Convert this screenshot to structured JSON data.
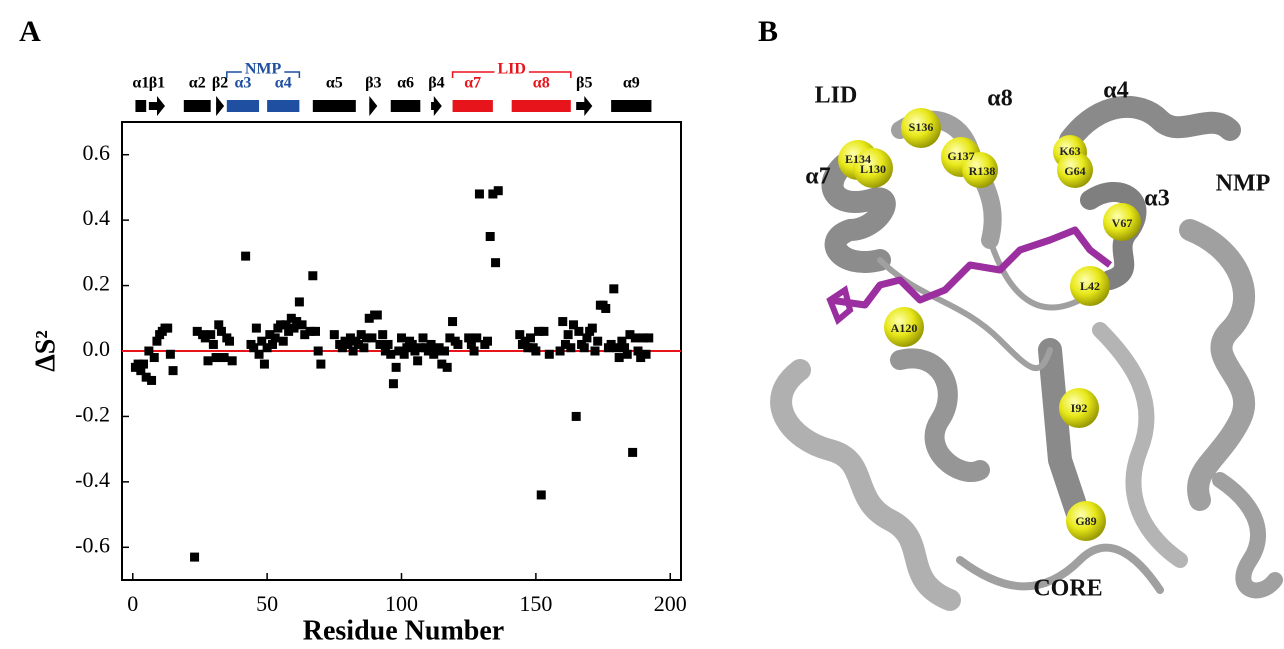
{
  "panel_labels": [
    "A",
    "B"
  ],
  "chart_data": {
    "type": "scatter",
    "xlabel": "Residue Number",
    "ylabel": "ΔS²",
    "xlim": [
      -4,
      204
    ],
    "ylim": [
      -0.7,
      0.7
    ],
    "xticks": [
      0,
      50,
      100,
      150,
      200
    ],
    "yticks": [
      -0.6,
      -0.4,
      -0.2,
      {
        "value": 0,
        "label": "0.0"
      },
      0.2,
      0.4,
      0.6
    ],
    "color": "#000000",
    "hline": 0,
    "hline_color": "#e8141b",
    "x": [
      1,
      2,
      3,
      4,
      5,
      6,
      7,
      8,
      9,
      10,
      11,
      12,
      13,
      14,
      15,
      23,
      24,
      26,
      27,
      28,
      29,
      30,
      31,
      32,
      33,
      34,
      35,
      36,
      37,
      42,
      44,
      45,
      46,
      47,
      48,
      49,
      50,
      51,
      52,
      53,
      54,
      55,
      56,
      57,
      58,
      59,
      60,
      61,
      62,
      63,
      64,
      66,
      67,
      68,
      69,
      70,
      75,
      77,
      78,
      79,
      80,
      81,
      82,
      83,
      84,
      85,
      86,
      87,
      88,
      89,
      90,
      91,
      92,
      93,
      94,
      95,
      96,
      97,
      98,
      99,
      100,
      101,
      102,
      103,
      104,
      105,
      106,
      107,
      108,
      109,
      110,
      111,
      112,
      113,
      114,
      115,
      116,
      117,
      118,
      119,
      120,
      121,
      125,
      126,
      127,
      128,
      129,
      131,
      132,
      133,
      134,
      135,
      136,
      144,
      145,
      146,
      147,
      148,
      149,
      150,
      151,
      152,
      153,
      155,
      159,
      160,
      161,
      162,
      163,
      164,
      165,
      166,
      167,
      168,
      169,
      170,
      171,
      172,
      173,
      174,
      175,
      176,
      177,
      178,
      179,
      180,
      181,
      182,
      183,
      184,
      185,
      186,
      187,
      188,
      189,
      190,
      191,
      192
    ],
    "y": [
      -0.05,
      -0.04,
      -0.06,
      -0.04,
      -0.08,
      0.0,
      -0.09,
      -0.02,
      0.03,
      0.05,
      0.06,
      0.07,
      0.07,
      -0.01,
      -0.06,
      -0.63,
      0.06,
      0.05,
      0.04,
      -0.03,
      0.05,
      0.02,
      -0.02,
      0.08,
      0.06,
      -0.02,
      0.04,
      0.03,
      -0.03,
      0.29,
      0.02,
      0.01,
      0.07,
      -0.01,
      0.03,
      -0.04,
      0.01,
      0.05,
      0.02,
      0.04,
      0.07,
      0.08,
      0.03,
      0.08,
      0.06,
      0.1,
      0.07,
      0.09,
      0.15,
      0.08,
      0.05,
      0.06,
      0.23,
      0.06,
      0.0,
      -0.04,
      0.05,
      0.02,
      0.01,
      0.03,
      0.02,
      0.04,
      0.0,
      0.03,
      0.02,
      0.05,
      0.01,
      0.04,
      0.1,
      0.04,
      0.11,
      0.11,
      0.02,
      0.05,
      0.0,
      0.02,
      -0.01,
      -0.1,
      -0.05,
      0.0,
      0.04,
      -0.01,
      0.01,
      0.03,
      0.02,
      0.0,
      -0.03,
      0.01,
      0.04,
      0.01,
      0.0,
      0.02,
      -0.01,
      0.0,
      0.01,
      -0.04,
      0.0,
      -0.05,
      0.04,
      0.09,
      0.03,
      0.02,
      0.04,
      0.02,
      0.0,
      0.04,
      0.48,
      0.02,
      0.03,
      0.35,
      0.48,
      0.27,
      0.49,
      0.05,
      0.02,
      0.03,
      0.01,
      0.04,
      0.01,
      0.0,
      0.06,
      -0.44,
      0.06,
      -0.01,
      0.0,
      0.09,
      0.02,
      0.05,
      0.01,
      0.08,
      -0.2,
      0.06,
      0.02,
      0.01,
      0.04,
      0.06,
      0.07,
      0.0,
      0.03,
      0.14,
      0.14,
      0.13,
      0.01,
      0.02,
      0.19,
      0.01,
      -0.02,
      0.03,
      0.01,
      -0.01,
      0.05,
      -0.31,
      0.04,
      0.0,
      -0.02,
      0.04,
      -0.01,
      0.04
    ],
    "secondary_structure": [
      {
        "label": "α1",
        "start": 1,
        "end": 5,
        "shape": "helix",
        "color": "#000000"
      },
      {
        "label": "β1",
        "start": 6,
        "end": 12,
        "shape": "strand",
        "color": "#000000"
      },
      {
        "label": "α2",
        "start": 19,
        "end": 29,
        "shape": "helix",
        "color": "#000000"
      },
      {
        "label": "β2",
        "start": 31,
        "end": 34,
        "shape": "strand",
        "color": "#000000"
      },
      {
        "label": "α3",
        "start": 35,
        "end": 47,
        "shape": "helix",
        "color": "#1f4fa0"
      },
      {
        "label": "α4",
        "start": 50,
        "end": 62,
        "shape": "helix",
        "color": "#1f4fa0"
      },
      {
        "label": "α5",
        "start": 67,
        "end": 83,
        "shape": "helix",
        "color": "#000000"
      },
      {
        "label": "β3",
        "start": 88,
        "end": 91,
        "shape": "strand",
        "color": "#000000"
      },
      {
        "label": "α6",
        "start": 96,
        "end": 107,
        "shape": "helix",
        "color": "#000000"
      },
      {
        "label": "β4",
        "start": 111,
        "end": 115,
        "shape": "strand",
        "color": "#000000"
      },
      {
        "label": "α7",
        "start": 119,
        "end": 134,
        "shape": "helix",
        "color": "#e8141b"
      },
      {
        "label": "α8",
        "start": 141,
        "end": 163,
        "shape": "helix",
        "color": "#e8141b"
      },
      {
        "label": "β5",
        "start": 165,
        "end": 171,
        "shape": "strand",
        "color": "#000000"
      },
      {
        "label": "α9",
        "start": 178,
        "end": 193,
        "shape": "helix",
        "color": "#000000"
      }
    ],
    "domains": [
      {
        "label": "NMP",
        "start": 35,
        "end": 62,
        "color": "#1f4fa0"
      },
      {
        "label": "LID",
        "start": 119,
        "end": 163,
        "color": "#e8141b"
      }
    ]
  },
  "structure": {
    "region_labels": [
      "LID",
      "α8",
      "α4",
      "α7",
      "NMP",
      "α3",
      "CORE"
    ],
    "residue_labels": [
      "E134",
      "S136",
      "G137",
      "R138",
      "K63",
      "G64",
      "L130",
      "V67",
      "L42",
      "A120",
      "I92",
      "G89"
    ]
  }
}
